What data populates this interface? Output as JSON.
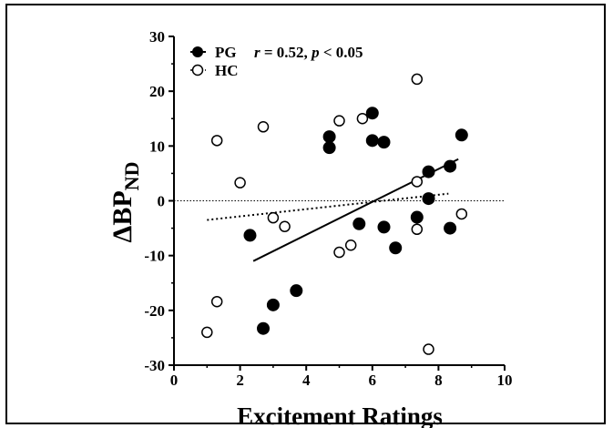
{
  "chart_data": {
    "type": "scatter",
    "title": "",
    "xlabel": "Excitement Ratings",
    "ylabel_main": "ΔBP",
    "ylabel_sub": "ND",
    "xlim": [
      0,
      10
    ],
    "ylim": [
      -30,
      30
    ],
    "xticks": [
      "0",
      "2",
      "4",
      "6",
      "8",
      "10"
    ],
    "yticks": [
      "-30",
      "-20",
      "-10",
      "0",
      "10",
      "20",
      "30"
    ],
    "grid": false,
    "legend_position": "top-left",
    "stat_annotation": {
      "r_label": "r",
      "r_value": " = 0.52, ",
      "p_label": "p",
      "p_value": " < 0.05"
    },
    "series": [
      {
        "name": "PG",
        "marker": "filled-circle",
        "fit_line": {
          "style": "solid",
          "x": [
            2.4,
            8.6
          ],
          "y": [
            -11.0,
            7.6
          ]
        },
        "points": [
          {
            "x": 2.3,
            "y": -6.3
          },
          {
            "x": 2.7,
            "y": -23.3
          },
          {
            "x": 3.0,
            "y": -19.0
          },
          {
            "x": 3.7,
            "y": -16.4
          },
          {
            "x": 4.7,
            "y": 11.7
          },
          {
            "x": 4.7,
            "y": 9.7
          },
          {
            "x": 5.6,
            "y": -4.2
          },
          {
            "x": 6.0,
            "y": 16.0
          },
          {
            "x": 6.0,
            "y": 11.0
          },
          {
            "x": 6.35,
            "y": 10.7
          },
          {
            "x": 6.35,
            "y": -4.8
          },
          {
            "x": 6.7,
            "y": -8.6
          },
          {
            "x": 7.35,
            "y": -3.0
          },
          {
            "x": 7.7,
            "y": 5.3
          },
          {
            "x": 7.7,
            "y": 0.4
          },
          {
            "x": 8.35,
            "y": 6.3
          },
          {
            "x": 8.35,
            "y": -5.0
          },
          {
            "x": 8.7,
            "y": 12.0
          }
        ]
      },
      {
        "name": "HC",
        "marker": "open-circle",
        "fit_line": {
          "style": "dotted",
          "x": [
            1.0,
            8.3
          ],
          "y": [
            -3.5,
            1.3
          ]
        },
        "points": [
          {
            "x": 1.0,
            "y": -24.0
          },
          {
            "x": 1.3,
            "y": 11.0
          },
          {
            "x": 1.3,
            "y": -18.4
          },
          {
            "x": 2.0,
            "y": 3.3
          },
          {
            "x": 2.7,
            "y": 13.5
          },
          {
            "x": 3.0,
            "y": -3.1
          },
          {
            "x": 3.35,
            "y": -4.7
          },
          {
            "x": 5.0,
            "y": 14.6
          },
          {
            "x": 5.0,
            "y": -9.4
          },
          {
            "x": 5.35,
            "y": -8.1
          },
          {
            "x": 5.7,
            "y": 15.0
          },
          {
            "x": 7.35,
            "y": 22.2
          },
          {
            "x": 7.35,
            "y": 3.5
          },
          {
            "x": 7.35,
            "y": -5.2
          },
          {
            "x": 7.7,
            "y": -27.1
          },
          {
            "x": 8.7,
            "y": -2.4
          }
        ]
      }
    ],
    "reference_line": {
      "y": 0,
      "style": "dotted"
    }
  }
}
